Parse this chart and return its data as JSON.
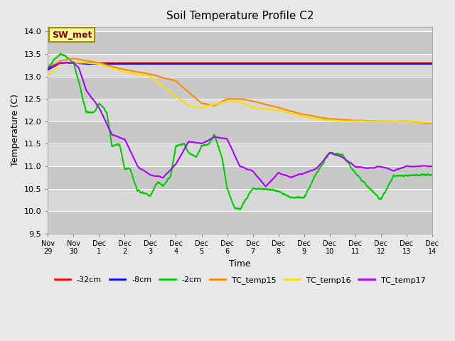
{
  "title": "Soil Temperature Profile C2",
  "xlabel": "Time",
  "ylabel": "Temperature (C)",
  "ylim": [
    9.5,
    14.1
  ],
  "xlim": [
    0,
    15
  ],
  "xtick_labels": [
    "Nov 29",
    "Nov 30",
    "Dec 1",
    "Dec 2",
    "Dec 3",
    "Dec 4",
    "Dec 5",
    "Dec 6",
    "Dec 7",
    "Dec 8",
    "Dec 9",
    "Dec 10",
    "Dec 11",
    "Dec 12",
    "Dec 13",
    "Dec 14"
  ],
  "ytick_values": [
    9.5,
    10.0,
    10.5,
    11.0,
    11.5,
    12.0,
    12.5,
    13.0,
    13.5,
    14.0
  ],
  "background_color": "#e8e8e8",
  "plot_bg_color": "#d8d8d8",
  "grid_color": "#ffffff",
  "annotation_text": "SW_met",
  "annotation_box_color": "#ffff99",
  "annotation_text_color": "#8b0000",
  "lines": {
    "-32cm": {
      "color": "#ff0000",
      "lw": 1.5
    },
    "-8cm": {
      "color": "#0000ff",
      "lw": 1.5
    },
    "-2cm": {
      "color": "#00cc00",
      "lw": 1.5
    },
    "TC_temp15": {
      "color": "#ff8800",
      "lw": 1.5
    },
    "TC_temp16": {
      "color": "#ffdd00",
      "lw": 1.5
    },
    "TC_temp17": {
      "color": "#aa00ff",
      "lw": 1.5
    }
  }
}
